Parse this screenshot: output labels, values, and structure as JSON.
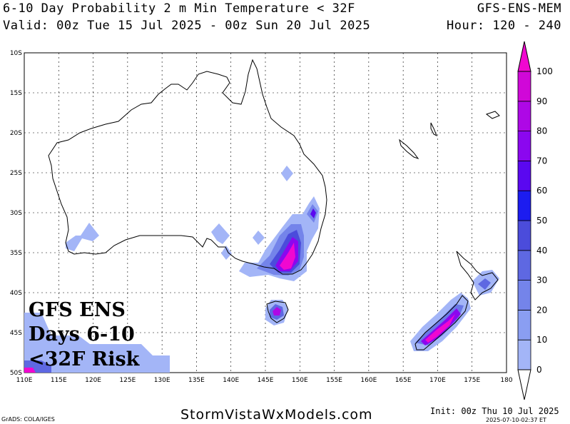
{
  "header": {
    "title": "6-10 Day Probability 2 m Min Temperature < 32F",
    "valid": "Valid: 00z Tue 15 Jul 2025 - 00z Sun 20 Jul 2025",
    "model": "GFS-ENS-MEM",
    "hours": "Hour: 120 - 240"
  },
  "map": {
    "lat_labels": [
      "10S",
      "15S",
      "20S",
      "25S",
      "30S",
      "35S",
      "40S",
      "45S",
      "50S"
    ],
    "lon_labels": [
      "110E",
      "115E",
      "120E",
      "125E",
      "130E",
      "135E",
      "140E",
      "145E",
      "150E",
      "155E",
      "160E",
      "165E",
      "170E",
      "175E",
      "180"
    ],
    "lat_range": [
      -50,
      -10
    ],
    "lon_range": [
      110,
      180
    ]
  },
  "colorbar": {
    "labels": [
      "0",
      "10",
      "20",
      "30",
      "40",
      "50",
      "60",
      "70",
      "80",
      "90",
      "100"
    ],
    "colors": [
      "#a3b5f7",
      "#8a9ef2",
      "#7484ea",
      "#5e68e2",
      "#4b4cdb",
      "#1c1cf0",
      "#5a08f0",
      "#8b07ef",
      "#ae08e6",
      "#d008d8",
      "#f008d0"
    ]
  },
  "overlay": {
    "line1": "GFS ENS",
    "line2": "Days 6-10",
    "line3": "<32F Risk"
  },
  "footer": {
    "grads": "GrADS: COLA/IGES",
    "site": "StormVistaWxModels.com",
    "init": "Init: 00z Thu 10 Jul 2025",
    "stamp": "2025-07-10-02:37 ET"
  }
}
